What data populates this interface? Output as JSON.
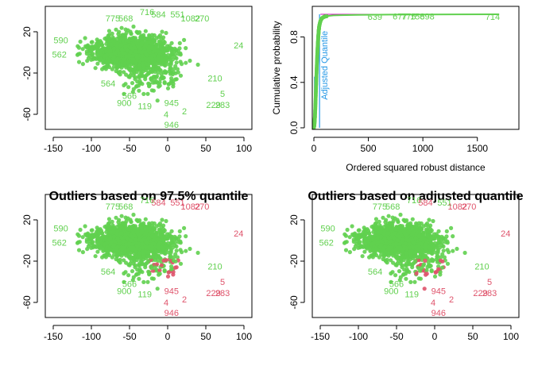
{
  "colors": {
    "green": "#61D04F",
    "red": "#DF536B",
    "blue": "#2297E6",
    "magenta": "#CD0BBC",
    "black": "#000000"
  },
  "chart_data": [
    {
      "type": "scatter",
      "panel": "top-left",
      "title": "",
      "xlabel": "",
      "ylabel": "",
      "xlim": [
        -150,
        100
      ],
      "ylim": [
        -70,
        40
      ],
      "xticks": [
        "-150",
        "-100",
        "-50",
        "0",
        "50",
        "100"
      ],
      "yticks": [
        "-60",
        "-20",
        "20"
      ],
      "labels": [
        {
          "text": "716",
          "x": -27,
          "y": 36,
          "outlier": false
        },
        {
          "text": "584",
          "x": -12,
          "y": 34,
          "outlier": false
        },
        {
          "text": "551",
          "x": 13,
          "y": 34,
          "outlier": false
        },
        {
          "text": "775",
          "x": -72,
          "y": 30,
          "outlier": false
        },
        {
          "text": "568",
          "x": -55,
          "y": 30,
          "outlier": false
        },
        {
          "text": "1082",
          "x": 30,
          "y": 30,
          "outlier": false
        },
        {
          "text": "270",
          "x": 45,
          "y": 30,
          "outlier": false
        },
        {
          "text": "590",
          "x": -140,
          "y": 9,
          "outlier": false
        },
        {
          "text": "562",
          "x": -142,
          "y": -5,
          "outlier": false
        },
        {
          "text": "24",
          "x": 93,
          "y": 4,
          "outlier": false
        },
        {
          "text": "564",
          "x": -78,
          "y": -33,
          "outlier": false
        },
        {
          "text": "566",
          "x": -50,
          "y": -45,
          "outlier": false
        },
        {
          "text": "900",
          "x": -57,
          "y": -52,
          "outlier": false
        },
        {
          "text": "119",
          "x": -30,
          "y": -55,
          "outlier": false
        },
        {
          "text": "945",
          "x": 5,
          "y": -52,
          "outlier": false
        },
        {
          "text": "2",
          "x": 22,
          "y": -60,
          "outlier": false
        },
        {
          "text": "5",
          "x": 72,
          "y": -43,
          "outlier": false
        },
        {
          "text": "229",
          "x": 60,
          "y": -54,
          "outlier": false
        },
        {
          "text": "283",
          "x": 72,
          "y": -54,
          "outlier": false
        },
        {
          "text": "4",
          "x": -2,
          "y": -63,
          "outlier": false
        },
        {
          "text": "946",
          "x": 5,
          "y": -73,
          "outlier": false
        },
        {
          "text": "210",
          "x": 62,
          "y": -28,
          "outlier": false
        }
      ]
    },
    {
      "type": "line",
      "panel": "top-right",
      "title": "",
      "xlabel": "Ordered squared robust distance",
      "ylabel": "Cumulative probability",
      "xlim": [
        0,
        1750
      ],
      "ylim": [
        0,
        1
      ],
      "xticks": [
        "0",
        "500",
        "1000",
        "1500"
      ],
      "yticks": [
        "0.0",
        "0.4",
        "0.8"
      ],
      "cutoff_label": "Adjusted Quantile",
      "series": [
        {
          "name": "",
          "color": "#61D04F",
          "x": [
            0,
            5,
            10,
            15,
            20,
            25,
            30,
            35,
            40,
            45,
            50,
            60,
            70,
            80,
            100,
            130,
            180,
            250,
            400,
            700,
            1300,
            1700
          ],
          "y": [
            0.0,
            0.03,
            0.1,
            0.22,
            0.36,
            0.5,
            0.62,
            0.72,
            0.8,
            0.86,
            0.9,
            0.94,
            0.96,
            0.97,
            0.98,
            0.985,
            0.99,
            0.992,
            0.995,
            0.997,
            0.999,
            1.0
          ]
        }
      ],
      "labels": [
        {
          "text": "639",
          "x": 560,
          "y": 0.985
        },
        {
          "text": "677",
          "x": 790,
          "y": 0.99
        },
        {
          "text": "775",
          "x": 870,
          "y": 0.99
        },
        {
          "text": "158",
          "x": 950,
          "y": 0.99
        },
        {
          "text": "698",
          "x": 1040,
          "y": 0.99
        },
        {
          "text": "714",
          "x": 1640,
          "y": 0.985
        }
      ]
    },
    {
      "type": "scatter",
      "panel": "bottom-left",
      "title": "Outliers based on 97.5% quantile",
      "xlabel": "",
      "ylabel": "",
      "xlim": [
        -150,
        100
      ],
      "ylim": [
        -70,
        40
      ],
      "xticks": [
        "-150",
        "-100",
        "-50",
        "0",
        "50",
        "100"
      ],
      "yticks": [
        "-60",
        "-20",
        "20"
      ],
      "labels": [
        {
          "text": "716",
          "x": -27,
          "y": 36,
          "outlier": false
        },
        {
          "text": "584",
          "x": -12,
          "y": 34,
          "outlier": true
        },
        {
          "text": "551",
          "x": 13,
          "y": 34,
          "outlier": true
        },
        {
          "text": "775",
          "x": -72,
          "y": 30,
          "outlier": false
        },
        {
          "text": "568",
          "x": -55,
          "y": 30,
          "outlier": false
        },
        {
          "text": "1082",
          "x": 30,
          "y": 30,
          "outlier": true
        },
        {
          "text": "270",
          "x": 45,
          "y": 30,
          "outlier": true
        },
        {
          "text": "590",
          "x": -140,
          "y": 9,
          "outlier": false
        },
        {
          "text": "562",
          "x": -142,
          "y": -5,
          "outlier": false
        },
        {
          "text": "24",
          "x": 93,
          "y": 4,
          "outlier": true
        },
        {
          "text": "564",
          "x": -78,
          "y": -33,
          "outlier": false
        },
        {
          "text": "566",
          "x": -50,
          "y": -45,
          "outlier": false
        },
        {
          "text": "900",
          "x": -57,
          "y": -52,
          "outlier": false
        },
        {
          "text": "119",
          "x": -30,
          "y": -55,
          "outlier": false
        },
        {
          "text": "945",
          "x": 5,
          "y": -52,
          "outlier": true
        },
        {
          "text": "2",
          "x": 22,
          "y": -60,
          "outlier": true
        },
        {
          "text": "5",
          "x": 72,
          "y": -43,
          "outlier": true
        },
        {
          "text": "229",
          "x": 60,
          "y": -54,
          "outlier": true
        },
        {
          "text": "283",
          "x": 72,
          "y": -54,
          "outlier": true
        },
        {
          "text": "4",
          "x": -2,
          "y": -63,
          "outlier": true
        },
        {
          "text": "946",
          "x": 5,
          "y": -73,
          "outlier": true
        },
        {
          "text": "210",
          "x": 62,
          "y": -28,
          "outlier": false
        }
      ]
    },
    {
      "type": "scatter",
      "panel": "bottom-right",
      "title": "Outliers based on adjusted quantile",
      "xlabel": "",
      "ylabel": "",
      "xlim": [
        -150,
        100
      ],
      "ylim": [
        -70,
        40
      ],
      "xticks": [
        "-150",
        "-100",
        "-50",
        "0",
        "50",
        "100"
      ],
      "yticks": [
        "-60",
        "-20",
        "20"
      ],
      "labels": [
        {
          "text": "716",
          "x": -27,
          "y": 36,
          "outlier": false
        },
        {
          "text": "584",
          "x": -12,
          "y": 34,
          "outlier": true
        },
        {
          "text": "551",
          "x": 13,
          "y": 34,
          "outlier": false
        },
        {
          "text": "775",
          "x": -72,
          "y": 30,
          "outlier": false
        },
        {
          "text": "568",
          "x": -55,
          "y": 30,
          "outlier": false
        },
        {
          "text": "1082",
          "x": 30,
          "y": 30,
          "outlier": true
        },
        {
          "text": "270",
          "x": 45,
          "y": 30,
          "outlier": true
        },
        {
          "text": "590",
          "x": -140,
          "y": 9,
          "outlier": false
        },
        {
          "text": "562",
          "x": -142,
          "y": -5,
          "outlier": false
        },
        {
          "text": "24",
          "x": 93,
          "y": 4,
          "outlier": true
        },
        {
          "text": "564",
          "x": -78,
          "y": -33,
          "outlier": false
        },
        {
          "text": "566",
          "x": -50,
          "y": -45,
          "outlier": false
        },
        {
          "text": "900",
          "x": -57,
          "y": -52,
          "outlier": false
        },
        {
          "text": "119",
          "x": -30,
          "y": -55,
          "outlier": false
        },
        {
          "text": "945",
          "x": 5,
          "y": -52,
          "outlier": true
        },
        {
          "text": "2",
          "x": 22,
          "y": -60,
          "outlier": true
        },
        {
          "text": "5",
          "x": 72,
          "y": -43,
          "outlier": true
        },
        {
          "text": "229",
          "x": 60,
          "y": -54,
          "outlier": true
        },
        {
          "text": "283",
          "x": 72,
          "y": -54,
          "outlier": true
        },
        {
          "text": "4",
          "x": -2,
          "y": -63,
          "outlier": true
        },
        {
          "text": "946",
          "x": 5,
          "y": -73,
          "outlier": true
        },
        {
          "text": "210",
          "x": 62,
          "y": -28,
          "outlier": false
        }
      ]
    }
  ]
}
